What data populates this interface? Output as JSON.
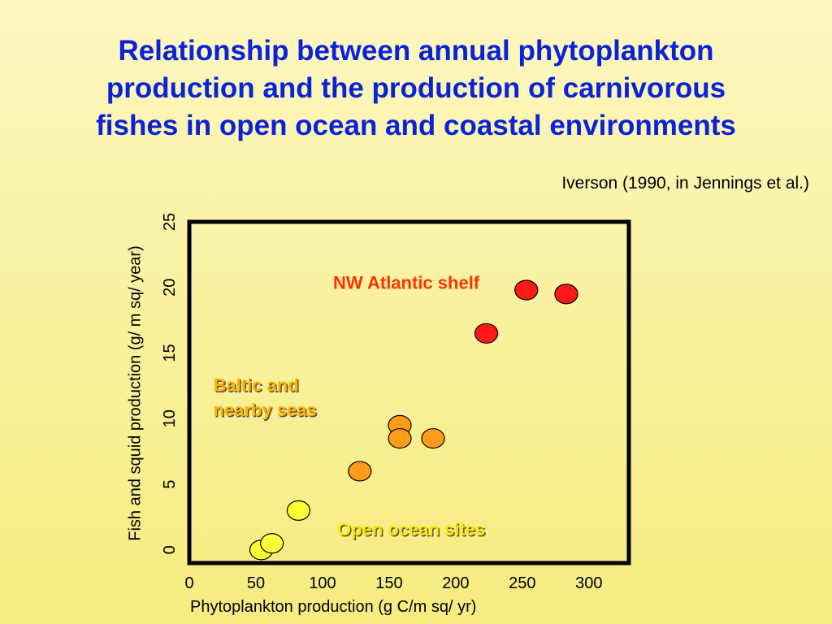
{
  "slide": {
    "title": "Relationship between annual phytoplankton\nproduction and the production of carnivorous\nfishes in open ocean and coastal environments",
    "source": "Iverson (1990, in Jennings et al.)"
  },
  "chart_data": {
    "type": "scatter",
    "xlabel": "Phytoplankton production (g C/m sq/ yr)",
    "ylabel": "Fish and squid production (g/ m sq/ year)",
    "xlim": [
      0,
      330
    ],
    "ylim": [
      -1,
      25
    ],
    "x_ticks": [
      "0",
      "50",
      "100",
      "150",
      "200",
      "250",
      "300"
    ],
    "y_ticks": [
      "0",
      "5",
      "10",
      "15",
      "20",
      "25"
    ],
    "grid": false,
    "series": [
      {
        "group": "open-ocean",
        "color": "#ffff33",
        "points": [
          {
            "x": 54,
            "y": 0
          },
          {
            "x": 62,
            "y": 0.5
          },
          {
            "x": 82,
            "y": 3
          }
        ]
      },
      {
        "group": "baltic",
        "color": "#ff9a1a",
        "points": [
          {
            "x": 128,
            "y": 6
          },
          {
            "x": 158,
            "y": 9.5
          },
          {
            "x": 158,
            "y": 8.5
          },
          {
            "x": 183,
            "y": 8.5
          }
        ]
      },
      {
        "group": "nw-atlantic",
        "color": "#ff1a1a",
        "points": [
          {
            "x": 223,
            "y": 16.5
          },
          {
            "x": 253,
            "y": 19.8
          },
          {
            "x": 283,
            "y": 19.5
          }
        ]
      }
    ],
    "annotations": [
      {
        "group": "nw-atlantic",
        "text": "NW Atlantic shelf",
        "color": "#ff3300",
        "x": 108,
        "y": 19.9
      },
      {
        "group": "baltic",
        "text": "Baltic and",
        "color": "#ffb400",
        "x": 18,
        "y": 12.1
      },
      {
        "group": "baltic",
        "text": "nearby seas",
        "color": "#ffb400",
        "x": 18,
        "y": 10.2
      },
      {
        "group": "open-ocean",
        "text": "Open ocean sites",
        "color": "#ffe600",
        "x": 111,
        "y": 1.1
      }
    ]
  }
}
